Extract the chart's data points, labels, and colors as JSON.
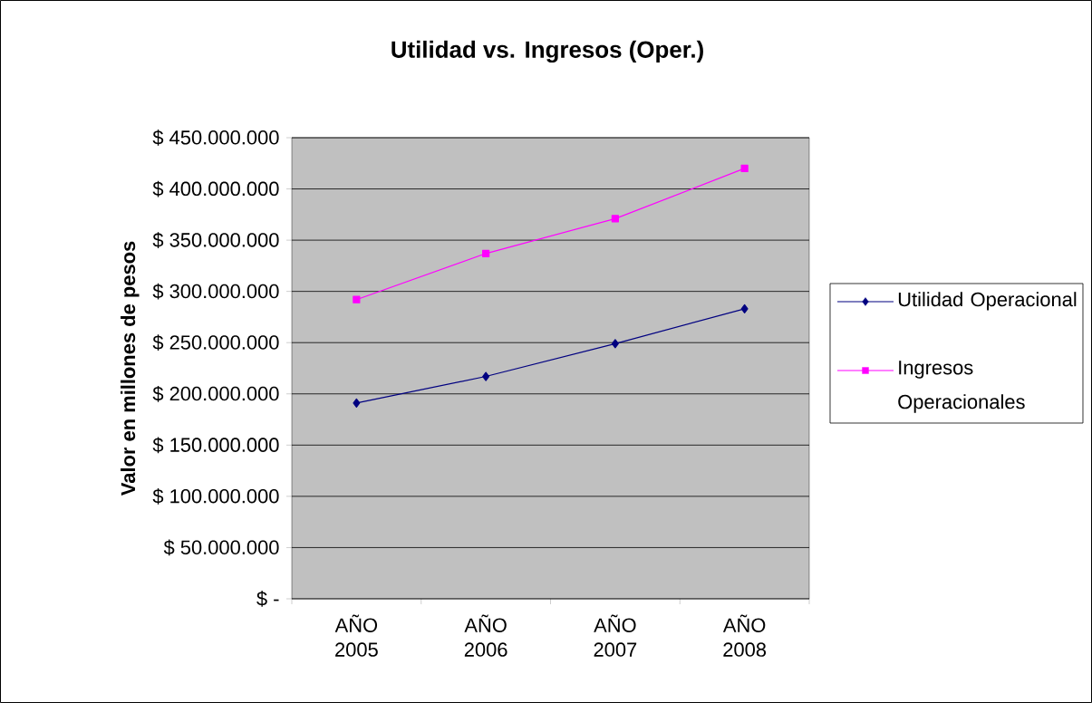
{
  "chart_data": {
    "type": "line",
    "title": "Utilidad vs. Ingresos (Oper.)",
    "ylabel": "Valor en millones de pesos",
    "categories": [
      "AÑO 2005",
      "AÑO 2006",
      "AÑO 2007",
      "AÑO 2008"
    ],
    "series": [
      {
        "name": "Utilidad Operacional",
        "color": "#000080",
        "marker": "diamond",
        "values": [
          191000000,
          217000000,
          249000000,
          283000000
        ]
      },
      {
        "name": "Ingresos Operacionales",
        "color": "#ff00ff",
        "marker": "square",
        "values": [
          292000000,
          337000000,
          371000000,
          420000000
        ]
      }
    ],
    "ylim": [
      0,
      450000000
    ],
    "yticks": [
      {
        "value": 0,
        "label": "$ -"
      },
      {
        "value": 50000000,
        "label": "$ 50.000.000"
      },
      {
        "value": 100000000,
        "label": "$ 100.000.000"
      },
      {
        "value": 150000000,
        "label": "$ 150.000.000"
      },
      {
        "value": 200000000,
        "label": "$ 200.000.000"
      },
      {
        "value": 250000000,
        "label": "$ 250.000.000"
      },
      {
        "value": 300000000,
        "label": "$ 300.000.000"
      },
      {
        "value": 350000000,
        "label": "$ 350.000.000"
      },
      {
        "value": 400000000,
        "label": "$ 400.000.000"
      },
      {
        "value": 450000000,
        "label": "$ 450.000.000"
      }
    ],
    "grid": "y",
    "legend": "right"
  }
}
